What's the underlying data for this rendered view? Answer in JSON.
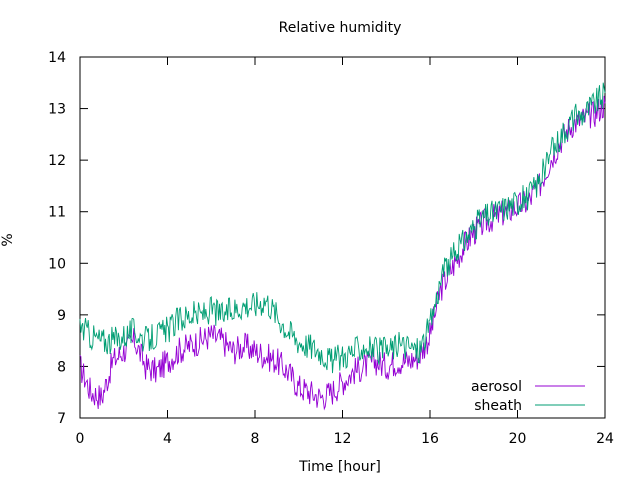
{
  "chart_data": {
    "type": "line",
    "title": "Relative humidity",
    "xlabel": "Time [hour]",
    "ylabel": "%",
    "xlim": [
      0,
      24
    ],
    "ylim": [
      7,
      14
    ],
    "xticks": [
      0,
      4,
      8,
      12,
      16,
      20,
      24
    ],
    "yticks": [
      7,
      8,
      9,
      10,
      11,
      12,
      13,
      14
    ],
    "grid": false,
    "legend_position": "bottom-right",
    "series": [
      {
        "name": "aerosol",
        "color": "#9400D3",
        "x": [
          0,
          0.5,
          1,
          1.5,
          2,
          2.5,
          3,
          3.5,
          4,
          4.5,
          5,
          5.5,
          6,
          6.5,
          7,
          7.5,
          8,
          8.5,
          9,
          9.5,
          10,
          10.5,
          11,
          11.5,
          12,
          12.5,
          13,
          13.5,
          14,
          14.5,
          15,
          15.5,
          16,
          16.5,
          17,
          17.5,
          18,
          18.5,
          19,
          19.5,
          20,
          20.5,
          21,
          21.5,
          22,
          22.5,
          23,
          23.5,
          24
        ],
        "y": [
          8.0,
          7.5,
          7.4,
          8.1,
          8.3,
          8.5,
          8.0,
          7.9,
          8.1,
          8.3,
          8.4,
          8.5,
          8.6,
          8.5,
          8.3,
          8.4,
          8.3,
          8.2,
          8.1,
          7.9,
          7.6,
          7.5,
          7.4,
          7.5,
          7.7,
          7.9,
          8.0,
          8.1,
          8.0,
          8.1,
          8.1,
          8.2,
          8.6,
          9.5,
          9.9,
          10.3,
          10.6,
          10.8,
          10.9,
          11.0,
          11.1,
          11.2,
          11.5,
          12.0,
          12.4,
          12.7,
          12.8,
          12.9,
          13.1
        ]
      },
      {
        "name": "sheath",
        "color": "#009E73",
        "x": [
          0,
          0.5,
          1,
          1.5,
          2,
          2.5,
          3,
          3.5,
          4,
          4.5,
          5,
          5.5,
          6,
          6.5,
          7,
          7.5,
          8,
          8.5,
          9,
          9.5,
          10,
          10.5,
          11,
          11.5,
          12,
          12.5,
          13,
          13.5,
          14,
          14.5,
          15,
          15.5,
          16,
          16.5,
          17,
          17.5,
          18,
          18.5,
          19,
          19.5,
          20,
          20.5,
          21,
          21.5,
          22,
          22.5,
          23,
          23.5,
          24
        ],
        "y": [
          8.8,
          8.6,
          8.5,
          8.5,
          8.6,
          8.7,
          8.5,
          8.6,
          8.7,
          8.9,
          9.0,
          9.0,
          9.1,
          9.0,
          9.1,
          9.2,
          9.2,
          9.3,
          9.0,
          8.7,
          8.5,
          8.4,
          8.3,
          8.1,
          8.2,
          8.3,
          8.4,
          8.3,
          8.3,
          8.4,
          8.4,
          8.3,
          8.8,
          9.7,
          10.1,
          10.4,
          10.7,
          10.9,
          11.0,
          11.1,
          11.2,
          11.3,
          11.6,
          12.1,
          12.5,
          12.8,
          12.9,
          13.1,
          13.3
        ]
      }
    ]
  }
}
